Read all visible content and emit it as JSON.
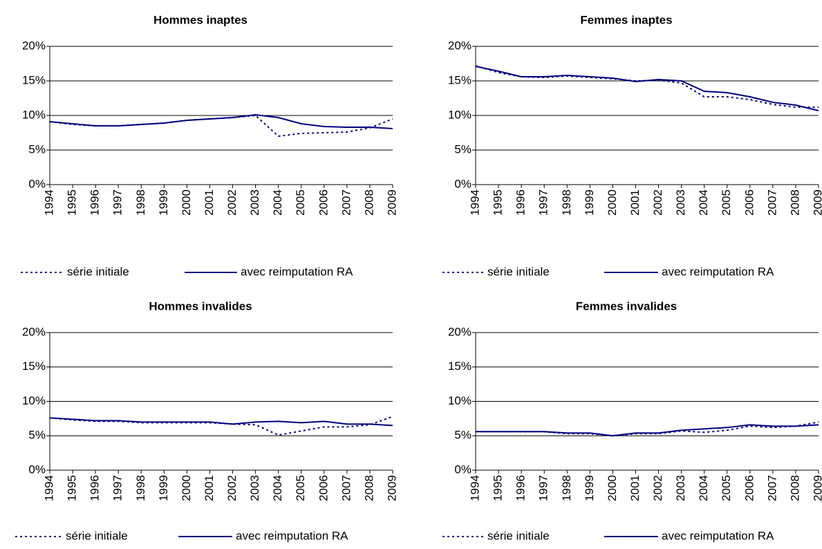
{
  "chart_data": [
    {
      "type": "line",
      "title": "Hommes inaptes",
      "x": [
        1994,
        1995,
        1996,
        1997,
        1998,
        1999,
        2000,
        2001,
        2002,
        2003,
        2004,
        2005,
        2006,
        2007,
        2008,
        2009
      ],
      "xlim": [
        1994,
        2009
      ],
      "ylim": [
        0,
        20
      ],
      "yticks": [
        {
          "value": 0,
          "label": "0%"
        },
        {
          "value": 5,
          "label": "5%"
        },
        {
          "value": 10,
          "label": "10%"
        },
        {
          "value": 15,
          "label": "15%"
        },
        {
          "value": 20,
          "label": "20%"
        }
      ],
      "grid": true,
      "series": [
        {
          "name": "série initiale",
          "color": "#000080",
          "style": "dotted",
          "values": [
            9.1,
            8.7,
            8.5,
            8.5,
            8.7,
            8.9,
            9.3,
            9.5,
            9.7,
            10.0,
            7.0,
            7.4,
            7.5,
            7.6,
            8.2,
            9.5
          ]
        },
        {
          "name": "avec reimputation RA",
          "color": "#000080",
          "style": "solid",
          "values": [
            9.1,
            8.8,
            8.5,
            8.5,
            8.7,
            8.9,
            9.3,
            9.5,
            9.7,
            10.1,
            9.7,
            8.8,
            8.4,
            8.3,
            8.3,
            8.1
          ]
        }
      ]
    },
    {
      "type": "line",
      "title": "Femmes inaptes",
      "x": [
        1994,
        1995,
        1996,
        1997,
        1998,
        1999,
        2000,
        2001,
        2002,
        2003,
        2004,
        2005,
        2006,
        2007,
        2008,
        2009
      ],
      "xlim": [
        1994,
        2009
      ],
      "ylim": [
        0,
        20
      ],
      "yticks": [
        {
          "value": 0,
          "label": "0%"
        },
        {
          "value": 5,
          "label": "5%"
        },
        {
          "value": 10,
          "label": "10%"
        },
        {
          "value": 15,
          "label": "15%"
        },
        {
          "value": 20,
          "label": "20%"
        }
      ],
      "grid": true,
      "series": [
        {
          "name": "série initiale",
          "color": "#000080",
          "style": "dotted",
          "values": [
            17.2,
            16.2,
            15.6,
            15.5,
            15.7,
            15.5,
            15.3,
            15.0,
            15.1,
            14.7,
            12.7,
            12.7,
            12.3,
            11.6,
            11.2,
            11.2
          ]
        },
        {
          "name": "avec reimputation RA",
          "color": "#000080",
          "style": "solid",
          "values": [
            17.1,
            16.4,
            15.6,
            15.6,
            15.8,
            15.6,
            15.4,
            14.9,
            15.2,
            15.0,
            13.5,
            13.3,
            12.7,
            11.9,
            11.5,
            10.7
          ]
        }
      ]
    },
    {
      "type": "line",
      "title": "Hommes invalides",
      "x": [
        1994,
        1995,
        1996,
        1997,
        1998,
        1999,
        2000,
        2001,
        2002,
        2003,
        2004,
        2005,
        2006,
        2007,
        2008,
        2009
      ],
      "xlim": [
        1994,
        2009
      ],
      "ylim": [
        0,
        20
      ],
      "yticks": [
        {
          "value": 0,
          "label": "0%"
        },
        {
          "value": 5,
          "label": "5%"
        },
        {
          "value": 10,
          "label": "10%"
        },
        {
          "value": 15,
          "label": "15%"
        },
        {
          "value": 20,
          "label": "20%"
        }
      ],
      "grid": true,
      "series": [
        {
          "name": "série initiale",
          "color": "#000080",
          "style": "dotted",
          "values": [
            7.6,
            7.3,
            7.1,
            7.1,
            6.9,
            6.9,
            6.9,
            6.9,
            6.7,
            6.6,
            5.1,
            5.7,
            6.3,
            6.3,
            6.6,
            7.8
          ]
        },
        {
          "name": "avec reimputation RA",
          "color": "#000080",
          "style": "solid",
          "values": [
            7.6,
            7.4,
            7.2,
            7.2,
            7.0,
            7.0,
            7.0,
            7.0,
            6.7,
            7.0,
            7.1,
            6.9,
            7.1,
            6.7,
            6.7,
            6.5
          ]
        }
      ]
    },
    {
      "type": "line",
      "title": "Femmes invalides",
      "x": [
        1994,
        1995,
        1996,
        1997,
        1998,
        1999,
        2000,
        2001,
        2002,
        2003,
        2004,
        2005,
        2006,
        2007,
        2008,
        2009
      ],
      "xlim": [
        1994,
        2009
      ],
      "ylim": [
        0,
        20
      ],
      "yticks": [
        {
          "value": 0,
          "label": "0%"
        },
        {
          "value": 5,
          "label": "5%"
        },
        {
          "value": 10,
          "label": "10%"
        },
        {
          "value": 15,
          "label": "15%"
        },
        {
          "value": 20,
          "label": "20%"
        }
      ],
      "grid": true,
      "series": [
        {
          "name": "série initiale",
          "color": "#000080",
          "style": "dotted",
          "values": [
            5.6,
            5.6,
            5.6,
            5.6,
            5.3,
            5.3,
            5.0,
            5.3,
            5.3,
            5.7,
            5.5,
            5.8,
            6.4,
            6.2,
            6.4,
            7.0
          ]
        },
        {
          "name": "avec reimputation RA",
          "color": "#000080",
          "style": "solid",
          "values": [
            5.6,
            5.6,
            5.6,
            5.6,
            5.4,
            5.4,
            5.0,
            5.4,
            5.4,
            5.8,
            6.0,
            6.2,
            6.6,
            6.4,
            6.4,
            6.6
          ]
        }
      ]
    }
  ]
}
